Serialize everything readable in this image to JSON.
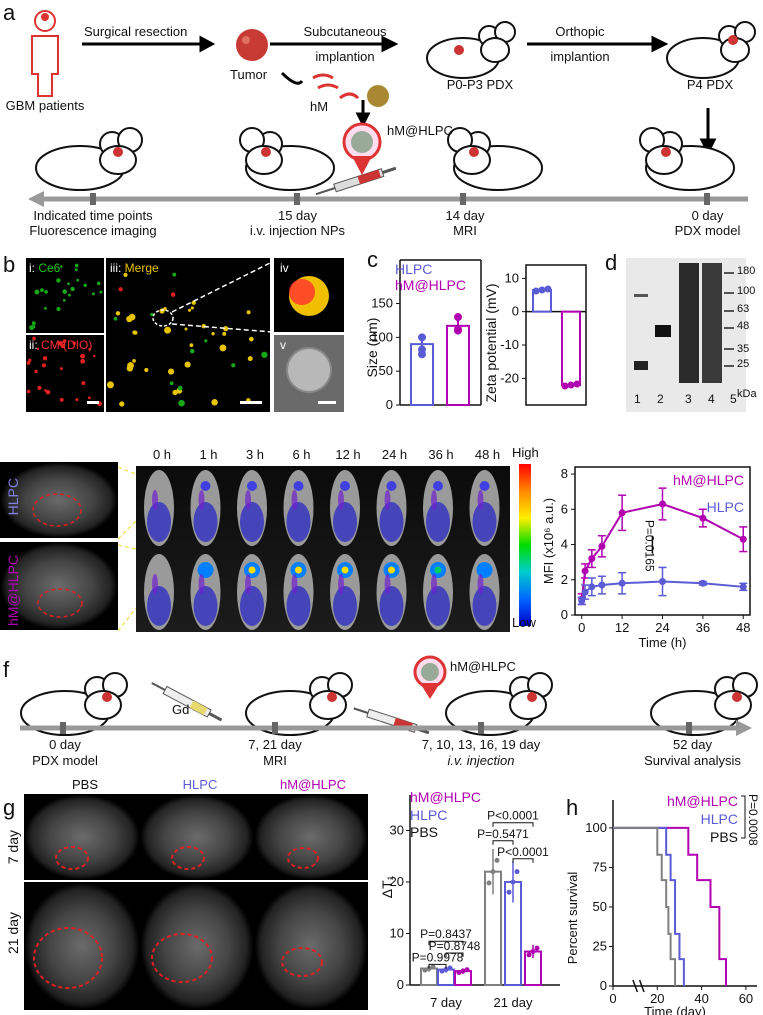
{
  "panels": {
    "a": "a",
    "b": "b",
    "c": "c",
    "d": "d",
    "e": "e",
    "f": "f",
    "g": "g",
    "h": "h"
  },
  "a": {
    "patients": "GBM patients",
    "resection": "Surgical resection",
    "tumor": "Tumor",
    "subq1": "Subcutaneous",
    "subq2": "implantion",
    "ortho1": "Orthopic",
    "ortho2": "implantion",
    "p0p3": "P0-P3 PDX",
    "p4": "P4 PDX",
    "hm": "hM",
    "hmhlpc": "hM@HLPC",
    "tl_1a": "Indicated time points",
    "tl_1b": "Fluorescence imaging",
    "tl_2a": "15 day",
    "tl_2b": "i.v. injection NPs",
    "tl_3a": "14 day",
    "tl_3b": "MRI",
    "tl_4a": "0 day",
    "tl_4b": "PDX model"
  },
  "b": {
    "i": "i: ",
    "i_name": "Ce6",
    "ii": "ii: ",
    "ii_name": "CM (DIO)",
    "iii": "iii: ",
    "iii_name": "Merge",
    "iv": "iv",
    "v": "v"
  },
  "c": {
    "legend_hlpc": "HLPC",
    "legend_hm": "hM@HLPC",
    "size_ylabel": "Size (nm)",
    "zeta_ylabel": "Zeta potential (mV)",
    "size_ticks": [
      "0",
      "50",
      "100",
      "150"
    ],
    "zeta_ticks": [
      "10",
      "0",
      "-10",
      "-20"
    ]
  },
  "d": {
    "markers": [
      "180",
      "100",
      "63",
      "48",
      "35",
      "25"
    ],
    "unit": "kDa",
    "lanes": [
      "1",
      "2",
      "3",
      "4",
      "5"
    ]
  },
  "e": {
    "row_hlpc": "HLPC",
    "row_hm": "hM@HLPC",
    "times": [
      "0 h",
      "1 h",
      "3 h",
      "6 h",
      "12 h",
      "24 h",
      "36 h",
      "48 h"
    ],
    "high": "High",
    "low": "Low"
  },
  "f": {
    "gd": "Gd",
    "hmhlpc": "hM@HLPC",
    "t1a": "0 day",
    "t1b": "PDX model",
    "t2a": "7, 21 day",
    "t2b": "MRI",
    "t3a": "7, 10, 13, 16, 19 day",
    "t3b": "i.v. injection",
    "t4a": "52 day",
    "t4b": "Survival analysis"
  },
  "g": {
    "cols": [
      "PBS",
      "HLPC",
      "hM@HLPC"
    ],
    "rows": [
      "7 day",
      "21 day"
    ]
  },
  "colors": {
    "hlpc": "#5b5bd6",
    "hm": "#b000b0",
    "pbs": "#808080",
    "red": "#d01010",
    "green": "#17a817",
    "yellow": "#e8c400"
  },
  "chart_data": [
    {
      "type": "bar",
      "id": "c-size",
      "categories": [
        "HLPC",
        "hM@HLPC"
      ],
      "values": [
        90,
        117
      ],
      "points": [
        [
          82,
          100,
          75
        ],
        [
          110,
          130,
          112
        ]
      ],
      "ylabel": "Size (nm)",
      "ylim": [
        0,
        170
      ],
      "yticks": [
        0,
        50,
        100,
        150
      ]
    },
    {
      "type": "bar",
      "id": "c-zeta",
      "categories": [
        "HLPC",
        "hM@HLPC"
      ],
      "values": [
        6.5,
        -22
      ],
      "ylabel": "Zeta potential (mV)",
      "ylim": [
        -28,
        14
      ],
      "yticks": [
        10,
        0,
        -10,
        -20
      ]
    },
    {
      "type": "line",
      "id": "e-mfi",
      "x": [
        0,
        1,
        3,
        6,
        12,
        24,
        36,
        48
      ],
      "series": [
        {
          "name": "hM@HLPC",
          "values": [
            0.9,
            2.5,
            3.2,
            3.9,
            5.8,
            6.3,
            5.5,
            4.3
          ],
          "err": [
            0.3,
            0.4,
            0.5,
            0.6,
            1.0,
            0.9,
            0.5,
            0.7
          ]
        },
        {
          "name": "HLPC",
          "values": [
            0.8,
            1.3,
            1.6,
            1.7,
            1.8,
            1.9,
            1.8,
            1.6
          ],
          "err": [
            0.2,
            0.4,
            0.5,
            0.5,
            0.6,
            0.8,
            0.1,
            0.2
          ]
        }
      ],
      "xlabel": "Time (h)",
      "ylabel": "MFI (x10⁶ a.u.)",
      "xlim": [
        -2,
        50
      ],
      "ylim": [
        0,
        8.4
      ],
      "xticks": [
        0,
        12,
        24,
        36,
        48
      ],
      "yticks": [
        0,
        2,
        4,
        6,
        8
      ],
      "annotation": "P=0.0165"
    },
    {
      "type": "bar",
      "id": "g-dt1",
      "categories": [
        "7 day",
        "21 day"
      ],
      "series": [
        {
          "name": "PBS",
          "values": [
            3.2,
            22
          ]
        },
        {
          "name": "HLPC",
          "values": [
            3.0,
            20
          ]
        },
        {
          "name": "hM@HLPC",
          "values": [
            2.7,
            6.5
          ]
        }
      ],
      "ylabel": "ΔT₁",
      "ylim": [
        0,
        33
      ],
      "yticks": [
        0,
        10,
        20,
        30
      ],
      "pvalues": [
        "P=0.8437",
        "P=0.8748",
        "P=0.9978",
        "P<0.0001",
        "P=0.5471",
        "P<0.0001"
      ]
    },
    {
      "type": "line",
      "id": "h-surv",
      "series": [
        {
          "name": "hM@HLPC",
          "steps": [
            [
              0,
              100
            ],
            [
              34,
              100
            ],
            [
              34,
              83
            ],
            [
              38,
              83
            ],
            [
              38,
              67
            ],
            [
              44,
              67
            ],
            [
              44,
              50
            ],
            [
              48,
              50
            ],
            [
              48,
              17
            ],
            [
              51,
              17
            ],
            [
              51,
              0
            ]
          ]
        },
        {
          "name": "HLPC",
          "steps": [
            [
              0,
              100
            ],
            [
              24,
              100
            ],
            [
              24,
              83
            ],
            [
              26,
              83
            ],
            [
              26,
              67
            ],
            [
              28,
              67
            ],
            [
              28,
              33
            ],
            [
              30,
              33
            ],
            [
              30,
              17
            ],
            [
              32,
              17
            ],
            [
              32,
              0
            ]
          ]
        },
        {
          "name": "PBS",
          "steps": [
            [
              0,
              100
            ],
            [
              20,
              100
            ],
            [
              20,
              83
            ],
            [
              22,
              83
            ],
            [
              22,
              67
            ],
            [
              24,
              67
            ],
            [
              24,
              50
            ],
            [
              25,
              50
            ],
            [
              25,
              33
            ],
            [
              26,
              33
            ],
            [
              26,
              17
            ],
            [
              28,
              17
            ],
            [
              28,
              0
            ]
          ]
        }
      ],
      "xlabel": "Time (day)",
      "ylabel": "Percent survival",
      "xlim": [
        0,
        65
      ],
      "ylim": [
        0,
        105
      ],
      "xticks": [
        0,
        20,
        40,
        60
      ],
      "yticks": [
        0,
        25,
        50,
        75,
        100
      ],
      "annotation": "P=0.0008"
    }
  ]
}
